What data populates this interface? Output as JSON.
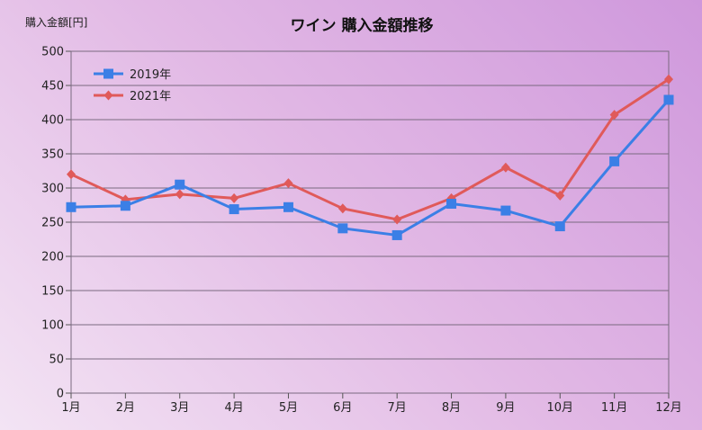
{
  "chart_data": {
    "type": "line",
    "title": "ワイン 購入金額推移",
    "ylabel": "購入金額[円]",
    "xlabel": "",
    "ylim": [
      0,
      500
    ],
    "ytick_step": 50,
    "grid": true,
    "legend_position": "top-left",
    "categories": [
      "1月",
      "2月",
      "3月",
      "4月",
      "5月",
      "6月",
      "7月",
      "8月",
      "9月",
      "10月",
      "11月",
      "12月"
    ],
    "series": [
      {
        "name": "2019年",
        "marker": "square",
        "color": "#3b7fe6",
        "values": [
          272,
          274,
          305,
          269,
          272,
          241,
          231,
          277,
          267,
          244,
          339,
          429
        ]
      },
      {
        "name": "2021年",
        "marker": "diamond",
        "color": "#e05a5a",
        "values": [
          320,
          283,
          291,
          285,
          307,
          270,
          254,
          285,
          330,
          289,
          407,
          459
        ]
      }
    ]
  }
}
